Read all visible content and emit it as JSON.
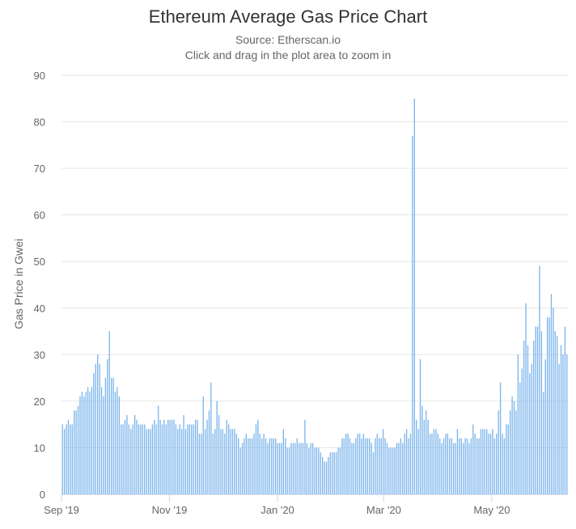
{
  "chart_data": {
    "type": "bar",
    "title": "Ethereum Average Gas Price Chart",
    "subtitle": "Source: Etherscan.io",
    "hint": "Click and drag in the plot area to zoom in",
    "xlabel": "",
    "ylabel": "Gas Price in Gwei",
    "ylim": [
      0,
      90
    ],
    "yticks": [
      0,
      10,
      20,
      30,
      40,
      50,
      60,
      70,
      80,
      90
    ],
    "x_start": "2019-09-01",
    "x_end": "2020-06-13",
    "xticks": [
      {
        "date": "2019-09-01",
        "label": "Sep '19"
      },
      {
        "date": "2019-11-01",
        "label": "Nov '19"
      },
      {
        "date": "2020-01-01",
        "label": "Jan '20"
      },
      {
        "date": "2020-03-01",
        "label": "Mar '20"
      },
      {
        "date": "2020-05-01",
        "label": "May '20"
      }
    ],
    "grid": true,
    "legend": "none",
    "bar_color": "#7cb5ec",
    "series": [
      {
        "values": [
          15,
          14,
          15,
          16,
          15,
          15,
          18,
          18,
          19,
          21,
          22,
          21,
          22,
          23,
          22,
          23,
          26,
          28,
          30,
          28,
          23,
          21,
          25,
          29,
          35,
          25,
          25,
          22,
          23,
          21,
          15,
          15,
          16,
          17,
          15,
          14,
          15,
          17,
          16,
          15,
          15,
          15,
          15,
          14,
          14,
          14,
          15,
          16,
          15,
          19,
          16,
          15,
          16,
          15,
          16,
          16,
          16,
          16,
          15,
          14,
          15,
          14,
          17,
          14,
          15,
          15,
          15,
          15,
          16,
          16,
          13,
          13,
          21,
          14,
          16,
          18,
          24,
          13,
          14,
          20,
          17,
          14,
          14,
          13,
          16,
          15,
          14,
          14,
          14,
          13,
          12,
          10,
          11,
          12,
          13,
          12,
          12,
          12,
          13,
          15,
          16,
          13,
          12,
          13,
          12,
          11,
          12,
          12,
          12,
          12,
          11,
          11,
          11,
          14,
          12,
          10,
          10,
          11,
          11,
          11,
          12,
          11,
          11,
          11,
          16,
          11,
          10,
          11,
          11,
          10,
          10,
          10,
          9,
          8,
          7,
          7,
          8,
          9,
          9,
          9,
          9,
          10,
          10,
          12,
          12,
          13,
          13,
          12,
          11,
          11,
          12,
          13,
          13,
          12,
          13,
          12,
          12,
          12,
          11,
          9,
          12,
          13,
          12,
          12,
          14,
          12,
          11,
          10,
          10,
          10,
          10,
          11,
          11,
          12,
          11,
          13,
          14,
          12,
          13,
          77,
          85,
          16,
          14,
          29,
          19,
          16,
          18,
          16,
          13,
          13,
          14,
          14,
          13,
          12,
          11,
          12,
          13,
          13,
          12,
          12,
          11,
          11,
          14,
          12,
          12,
          11,
          12,
          12,
          11,
          12,
          15,
          13,
          12,
          12,
          14,
          14,
          14,
          14,
          13,
          13,
          14,
          12,
          13,
          18,
          24,
          13,
          12,
          15,
          15,
          18,
          21,
          20,
          18,
          30,
          24,
          27,
          33,
          41,
          32,
          26,
          28,
          33,
          36,
          36,
          49,
          35,
          22,
          29,
          38,
          38,
          43,
          40,
          35,
          34,
          28,
          32,
          30,
          36,
          30
        ]
      }
    ]
  }
}
